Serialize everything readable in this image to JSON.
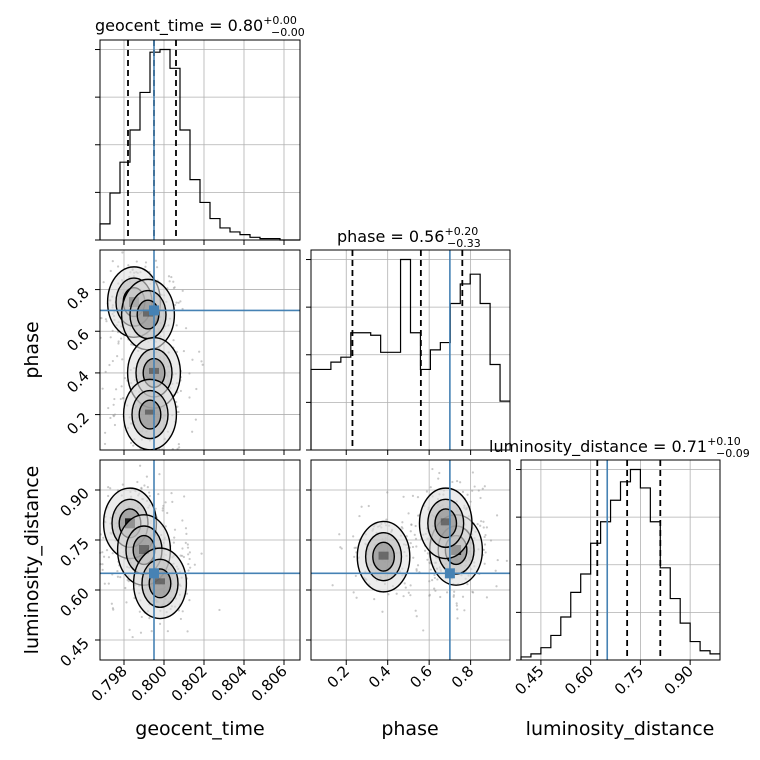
{
  "chart_data": {
    "type": "corner",
    "parameters": [
      "geocent_time",
      "phase",
      "luminosity_distance"
    ],
    "axes": {
      "geocent_time": {
        "label": "geocent_time",
        "range": [
          0.7968,
          0.8068
        ],
        "ticks": [
          0.798,
          0.8,
          0.802,
          0.804,
          0.806
        ],
        "tick_labels": [
          "0.798",
          "0.800",
          "0.802",
          "0.804",
          "0.806"
        ]
      },
      "phase": {
        "label": "phase",
        "range": [
          0.03,
          0.99
        ],
        "ticks": [
          0.2,
          0.4,
          0.6,
          0.8
        ],
        "tick_labels": [
          "0.2",
          "0.4",
          "0.6",
          "0.8"
        ]
      },
      "luminosity_distance": {
        "label": "luminosity_distance",
        "range": [
          0.39,
          0.99
        ],
        "ticks": [
          0.45,
          0.6,
          0.75,
          0.9
        ],
        "tick_labels": [
          "0.45",
          "0.60",
          "0.75",
          "0.90"
        ]
      }
    },
    "titles": [
      {
        "param": "geocent_time",
        "text": "geocent_time = 0.80",
        "sup": "+0.00",
        "sub": "−0.00"
      },
      {
        "param": "phase",
        "text": "phase = 0.56",
        "sup": "+0.20",
        "sub": "−0.33"
      },
      {
        "param": "luminosity_distance",
        "text": "luminosity_distance = 0.71",
        "sup": "+0.10",
        "sub": "−0.09"
      }
    ],
    "truths": {
      "geocent_time": 0.7995,
      "phase": 0.7,
      "luminosity_distance": 0.65
    },
    "quantiles": {
      "geocent_time": [
        0.7982,
        0.7995,
        0.8006
      ],
      "phase": [
        0.23,
        0.56,
        0.76
      ],
      "luminosity_distance": [
        0.62,
        0.71,
        0.81
      ]
    },
    "histograms": {
      "geocent_time": {
        "range": [
          0.7968,
          0.8068
        ],
        "counts": [
          12,
          35,
          58,
          82,
          110,
          140,
          142,
          128,
          82,
          45,
          28,
          16,
          9,
          6,
          4,
          2,
          1,
          1,
          0,
          0
        ]
      },
      "phase": {
        "range": [
          0.03,
          0.99
        ],
        "counts": [
          33,
          33,
          36,
          38,
          48,
          48,
          47,
          40,
          40,
          78,
          48,
          33,
          41,
          44,
          60,
          68,
          72,
          60,
          35,
          20
        ]
      },
      "luminosity_distance": {
        "range": [
          0.39,
          0.99
        ],
        "counts": [
          1,
          2,
          4,
          8,
          14,
          22,
          28,
          38,
          45,
          52,
          58,
          62,
          56,
          45,
          30,
          20,
          12,
          6,
          3,
          2
        ]
      }
    },
    "contours_2d": {
      "geocent_time-phase": {
        "peaks": [
          [
            0.7985,
            0.74,
            1.0
          ],
          [
            0.7992,
            0.68,
            0.7
          ],
          [
            0.7995,
            0.4,
            0.6
          ],
          [
            0.7993,
            0.2,
            0.5
          ]
        ]
      },
      "geocent_time-luminosity_distance": {
        "peaks": [
          [
            0.7983,
            0.8,
            1.0
          ],
          [
            0.799,
            0.72,
            0.9
          ],
          [
            0.7998,
            0.62,
            0.6
          ]
        ]
      },
      "phase-luminosity_distance": {
        "peaks": [
          [
            0.38,
            0.7,
            0.8
          ],
          [
            0.73,
            0.72,
            1.0
          ],
          [
            0.68,
            0.8,
            0.7
          ]
        ]
      }
    },
    "grid": true,
    "truth_color": "#4682b4",
    "line_color": "#000000"
  }
}
